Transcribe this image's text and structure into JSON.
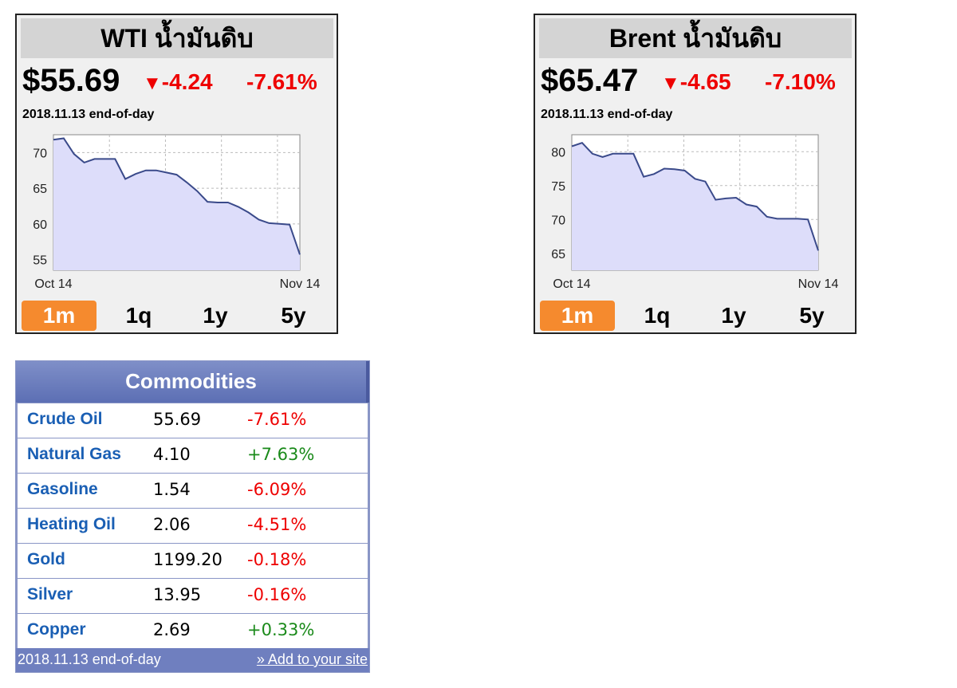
{
  "wti": {
    "title": "WTI น้ำมันดิบ",
    "price": "$55.69",
    "arrow": "▼",
    "change": "-4.24",
    "percent": "-7.61%",
    "date": "2018.11.13 end-of-day",
    "ranges": [
      "1m",
      "1q",
      "1y",
      "5y"
    ],
    "active_range": "1m"
  },
  "brent": {
    "title": "Brent น้ำมันดิบ",
    "price": "$65.47",
    "arrow": "▼",
    "change": "-4.65",
    "percent": "-7.10%",
    "date": "2018.11.13 end-of-day",
    "ranges": [
      "1m",
      "1q",
      "1y",
      "5y"
    ],
    "active_range": "1m"
  },
  "commodities": {
    "title": "Commodities",
    "rows": [
      {
        "name": "Crude Oil",
        "value": "55.69",
        "change": "-7.61%",
        "dir": "neg"
      },
      {
        "name": "Natural Gas",
        "value": "4.10",
        "change": "+7.63%",
        "dir": "pos"
      },
      {
        "name": "Gasoline",
        "value": "1.54",
        "change": "-6.09%",
        "dir": "neg"
      },
      {
        "name": "Heating Oil",
        "value": "2.06",
        "change": "-4.51%",
        "dir": "neg"
      },
      {
        "name": "Gold",
        "value": "1199.20",
        "change": "-0.18%",
        "dir": "neg"
      },
      {
        "name": "Silver",
        "value": "13.95",
        "change": "-0.16%",
        "dir": "neg"
      },
      {
        "name": "Copper",
        "value": "2.69",
        "change": "+0.33%",
        "dir": "pos"
      }
    ],
    "footer_date": "2018.11.13 end-of-day",
    "footer_link": "» Add to your site"
  },
  "colors": {
    "down": "#ee0000",
    "up": "#1a8a1a",
    "active_range": "#f58a2e",
    "chart_line": "#3a4a8a",
    "chart_fill": "#ddddfa"
  },
  "chart_data": [
    {
      "type": "area",
      "x_labels": [
        "Oct 14",
        "Nov 14"
      ],
      "yticks": [
        55,
        60,
        65,
        70
      ],
      "ylim": [
        53.5,
        72.5
      ],
      "grid": true,
      "values": [
        71.8,
        72.0,
        69.8,
        68.6,
        69.1,
        69.1,
        69.1,
        66.3,
        67.0,
        67.5,
        67.5,
        67.2,
        66.9,
        65.8,
        64.6,
        63.1,
        63.0,
        63.0,
        62.4,
        61.6,
        60.6,
        60.1,
        60.0,
        59.9,
        55.7
      ]
    },
    {
      "type": "area",
      "x_labels": [
        "Oct 14",
        "Nov 14"
      ],
      "yticks": [
        65,
        70,
        75,
        80
      ],
      "ylim": [
        62.5,
        82.5
      ],
      "grid": true,
      "values": [
        80.8,
        81.3,
        79.7,
        79.2,
        79.7,
        79.7,
        79.7,
        76.3,
        76.7,
        77.5,
        77.4,
        77.2,
        76.0,
        75.6,
        72.9,
        73.1,
        73.2,
        72.2,
        71.9,
        70.4,
        70.1,
        70.1,
        70.1,
        70.0,
        65.4
      ]
    }
  ]
}
